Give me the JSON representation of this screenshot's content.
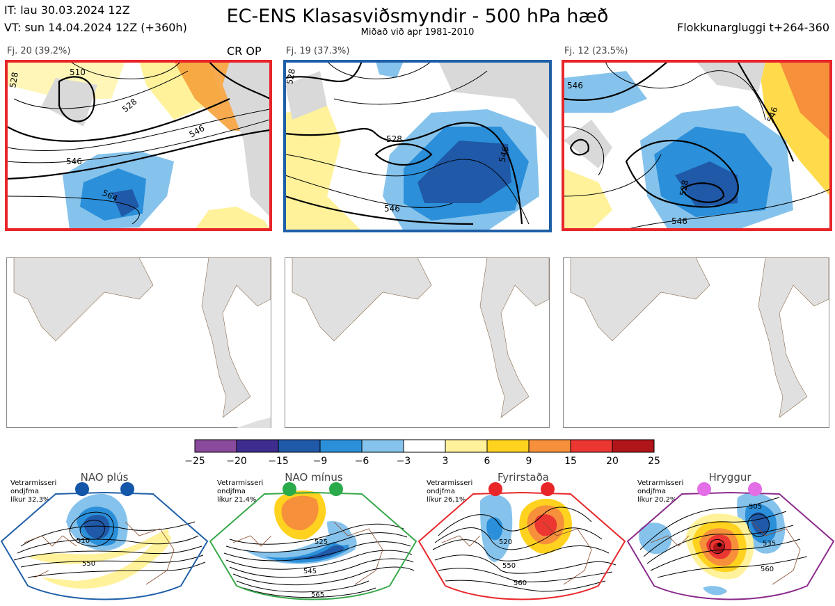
{
  "header": {
    "it": "IT: lau 30.03.2024 12Z",
    "vt": "VT: sun 14.04.2024 12Z  (+360h)",
    "title": "EC-ENS Klasasviðsmyndir - 500 hPa hæð",
    "subtitle": "Miðað við apr 1981-2010",
    "window": "Flokkunargluggi t+264-360"
  },
  "panels": [
    {
      "label": "Fj. 20 (39.2%)",
      "tag": "CR OP",
      "border": "#e8262a",
      "contours": [
        "510",
        "528",
        "546",
        "564",
        "546",
        "528"
      ]
    },
    {
      "label": "Fj. 19 (37.3%)",
      "tag": "",
      "border": "#1f5fa8",
      "contours": [
        "528",
        "546",
        "546",
        "528"
      ]
    },
    {
      "label": "Fj. 12 (23.5%)",
      "tag": "",
      "border": "#e8262a",
      "contours": [
        "546",
        "528",
        "546",
        "546"
      ]
    }
  ],
  "colorbar": {
    "ticks": [
      "−25",
      "−20",
      "−15",
      "−9",
      "−6",
      "−3",
      "3",
      "6",
      "9",
      "15",
      "20",
      "25"
    ],
    "colors": [
      "#8a4b9c",
      "#3e2d8f",
      "#1f59a8",
      "#2b8fd9",
      "#86c3ec",
      "#ffffff",
      "#fff29a",
      "#ffd21f",
      "#f6903b",
      "#eb3632",
      "#b01519"
    ]
  },
  "regimes": [
    {
      "name": "NAO plús",
      "note1": "Vetrarmisseri",
      "note2": "ondjfma",
      "note3": "líkur 32,3%",
      "dot_color": "#1456a8",
      "frame_color": "#1f5fa8",
      "labels": [
        "510",
        "550"
      ]
    },
    {
      "name": "NAO mínus",
      "note1": "Vetrarmisseri",
      "note2": "ondjfma",
      "note3": "líkur 21,4%",
      "dot_color": "#2aaa4a",
      "frame_color": "#36a84a",
      "labels": [
        "525",
        "545",
        "565"
      ]
    },
    {
      "name": "Fyrirstaða",
      "note1": "Vetrarmisseri",
      "note2": "ondjfma",
      "note3": "líkur 26,1%",
      "dot_color": "#e8262a",
      "frame_color": "#e8262a",
      "labels": [
        "520",
        "550",
        "560"
      ]
    },
    {
      "name": "Hryggur",
      "note1": "Vetrarmisseri",
      "note2": "ondjfma",
      "note3": "líkur 20,2%",
      "dot_color": "#e36ee6",
      "frame_color": "#8a2a8c",
      "labels": [
        "505",
        "535",
        "560"
      ]
    }
  ]
}
